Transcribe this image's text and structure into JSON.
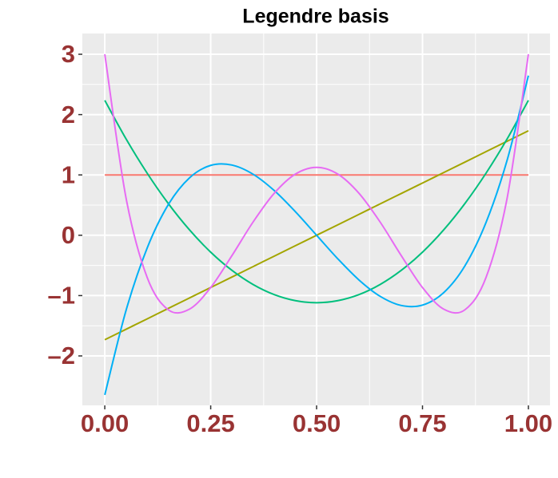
{
  "chart_data": {
    "type": "line",
    "title": "Legendre basis",
    "x": [
      0,
      0.05,
      0.1,
      0.15,
      0.2,
      0.25,
      0.3,
      0.35,
      0.4,
      0.45,
      0.5,
      0.55,
      0.6,
      0.65,
      0.7,
      0.75,
      0.8,
      0.85,
      0.9,
      0.95,
      1
    ],
    "series": [
      {
        "color": "#F8766D",
        "values": [
          1,
          1,
          1,
          1,
          1,
          1,
          1,
          1,
          1,
          1,
          1,
          1,
          1,
          1,
          1,
          1,
          1,
          1,
          1,
          1,
          1
        ]
      },
      {
        "color": "#A3A500",
        "values": [
          -1.732,
          -1.559,
          -1.386,
          -1.212,
          -1.039,
          -0.866,
          -0.693,
          -0.52,
          -0.346,
          -0.173,
          0,
          0.173,
          0.346,
          0.52,
          0.693,
          0.866,
          1.039,
          1.212,
          1.386,
          1.559,
          1.732
        ]
      },
      {
        "color": "#00BF7D",
        "values": [
          2.236,
          1.599,
          1.029,
          0.525,
          0.089,
          -0.28,
          -0.581,
          -0.816,
          -0.984,
          -1.084,
          -1.118,
          -1.084,
          -0.984,
          -0.816,
          -0.581,
          -0.28,
          0.089,
          0.525,
          1.029,
          1.599,
          2.236
        ]
      },
      {
        "color": "#00B0F6",
        "values": [
          -2.646,
          -1.25,
          -0.212,
          0.509,
          0.952,
          1.158,
          1.164,
          1.012,
          0.741,
          0.39,
          0,
          -0.39,
          -0.741,
          -1.012,
          -1.164,
          -1.158,
          -0.952,
          -0.509,
          0.212,
          1.25,
          2.646
        ]
      },
      {
        "color": "#E76BF3",
        "values": [
          3,
          0.624,
          -0.699,
          -1.236,
          -1.224,
          -0.867,
          -0.339,
          0.219,
          0.696,
          1.014,
          1.125,
          1.014,
          0.696,
          0.219,
          -0.339,
          -0.867,
          -1.224,
          -1.236,
          -0.699,
          0.624,
          3
        ]
      }
    ],
    "xlim": [
      -0.053,
      1.051
    ],
    "ylim": [
      -2.82,
      3.344
    ],
    "xticks": [
      {
        "value": 0,
        "label": "0.00"
      },
      {
        "value": 0.25,
        "label": "0.25"
      },
      {
        "value": 0.5,
        "label": "0.50"
      },
      {
        "value": 0.75,
        "label": "0.75"
      },
      {
        "value": 1,
        "label": "1.00"
      }
    ],
    "yticks": [
      {
        "value": -2,
        "label": "–2"
      },
      {
        "value": -1,
        "label": "–1"
      },
      0,
      1,
      2,
      3
    ],
    "grid": true
  }
}
